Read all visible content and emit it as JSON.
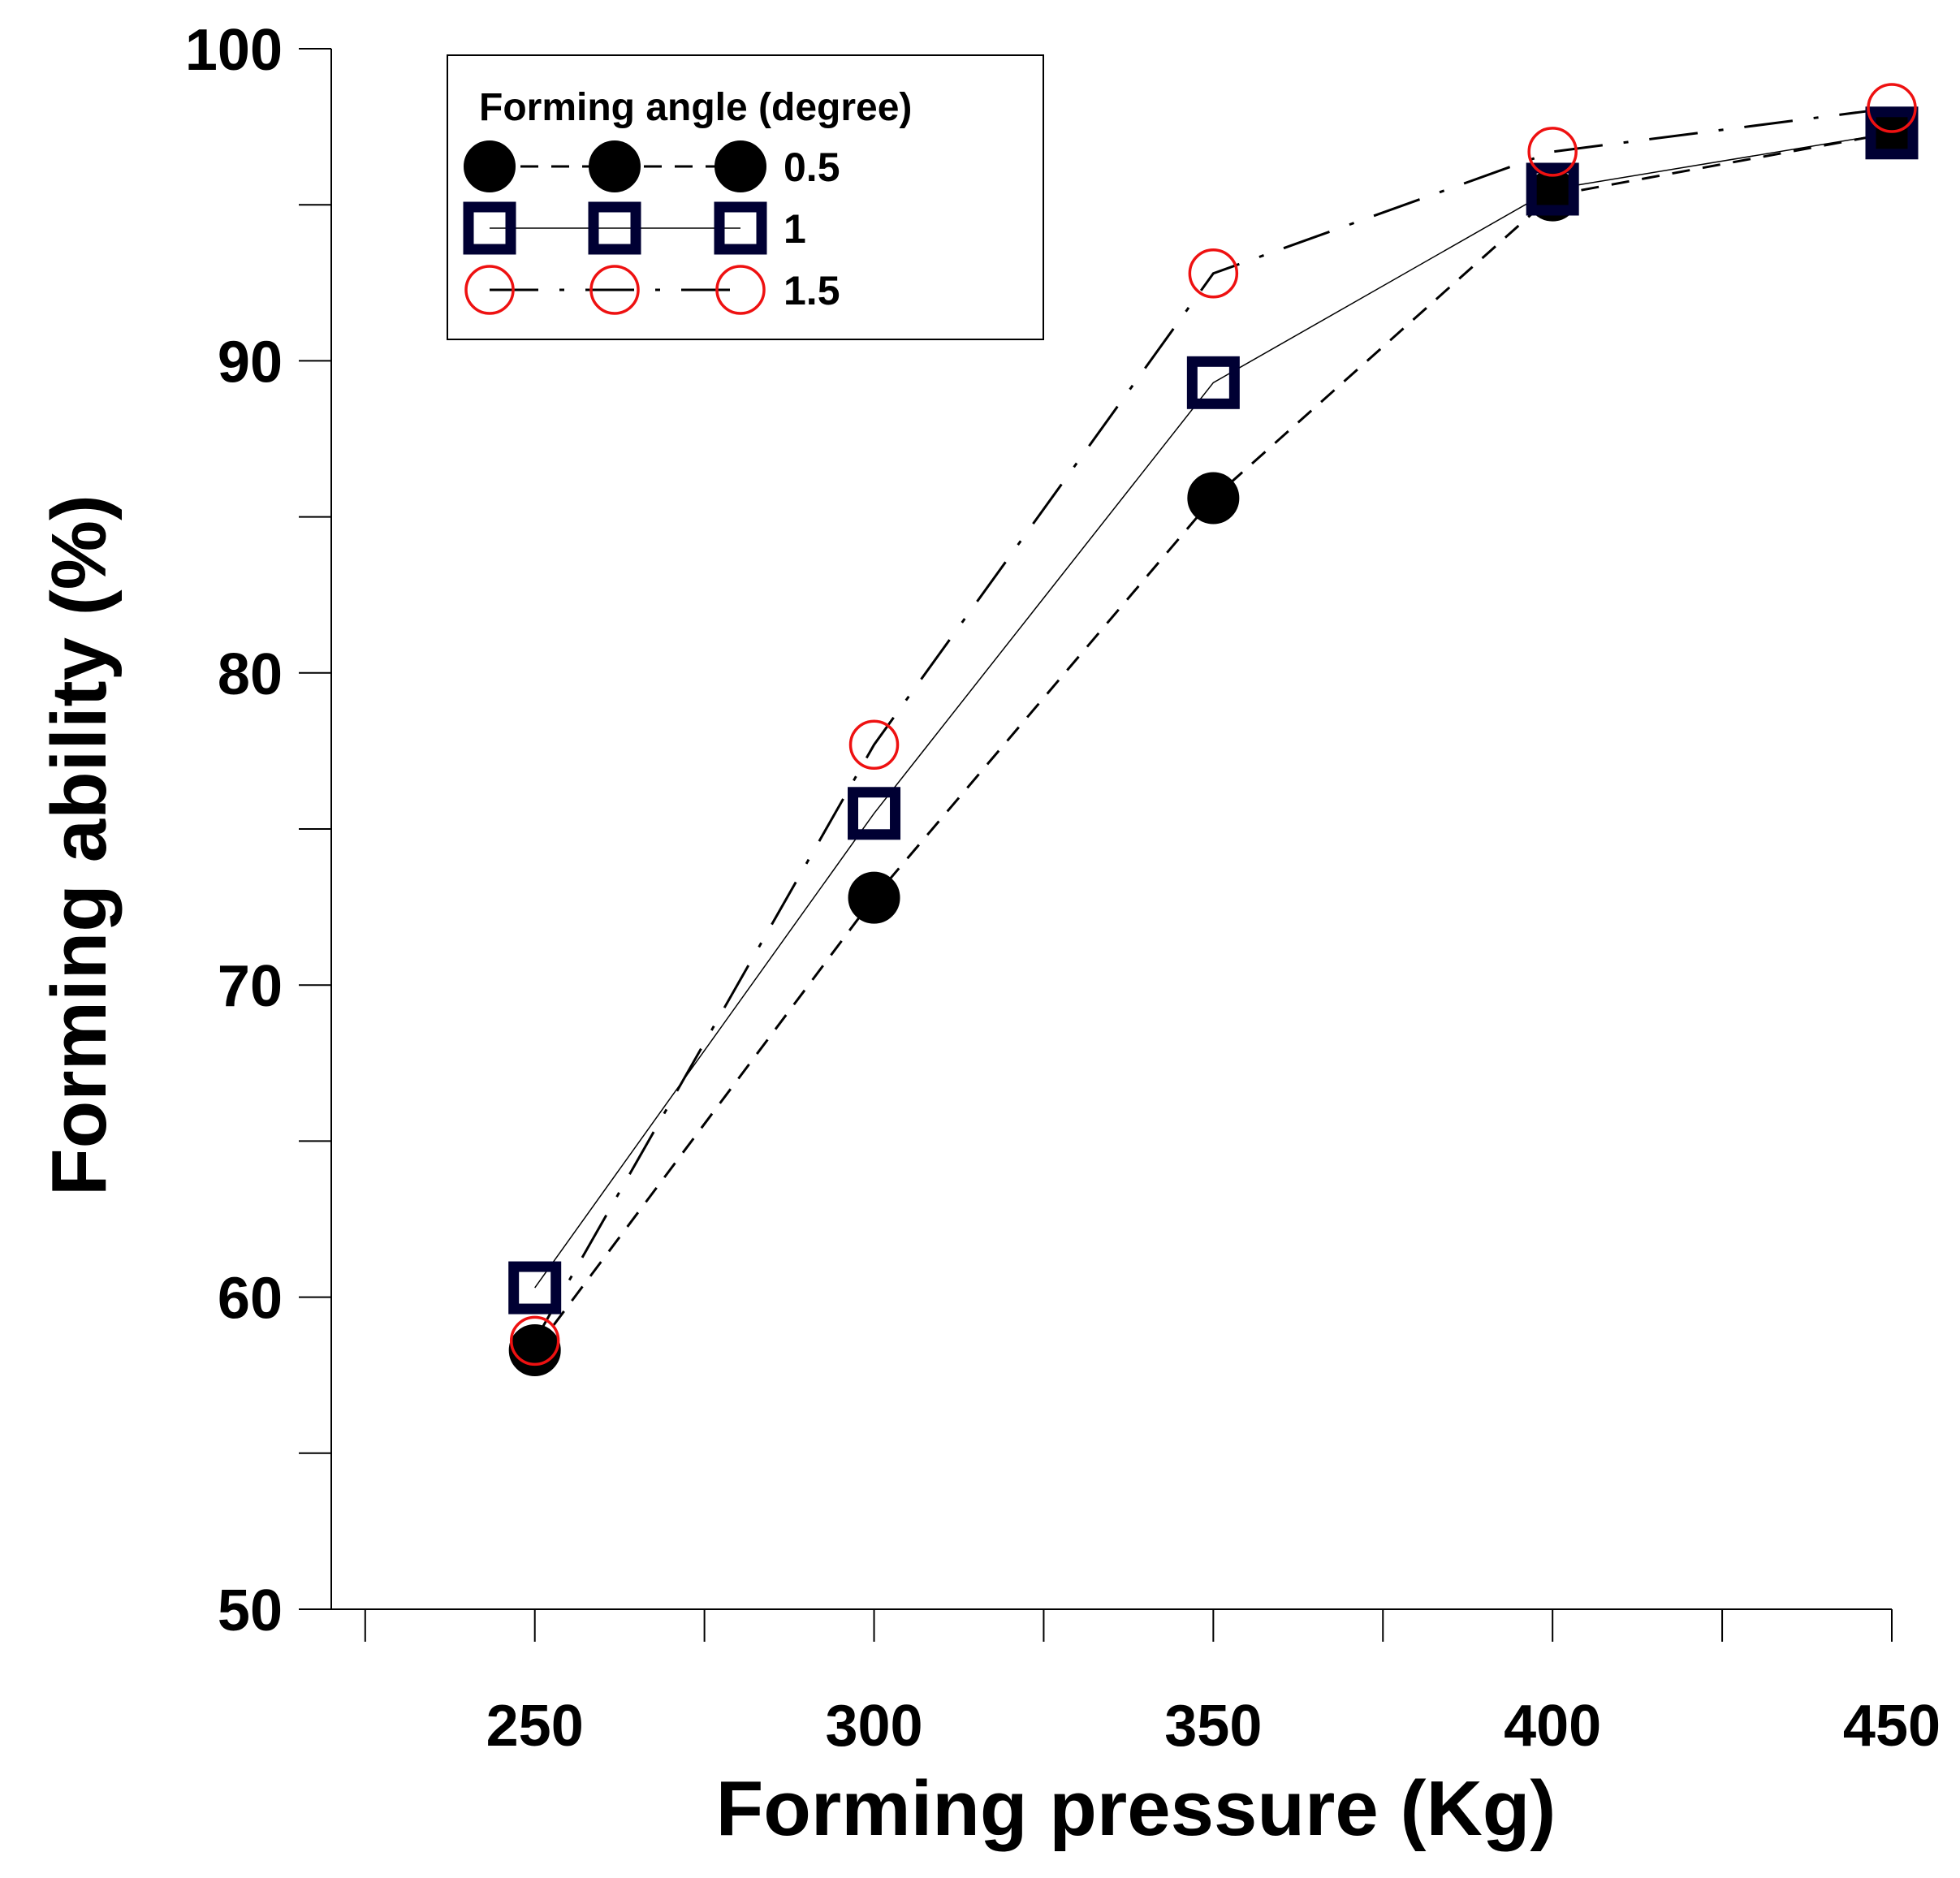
{
  "chart_data": {
    "type": "line",
    "title": "",
    "xlabel": "Forming pressure (Kg)",
    "ylabel": "Forming ability (%)",
    "x": [
      250,
      300,
      350,
      400,
      450
    ],
    "xlim": [
      220,
      450
    ],
    "ylim": [
      50,
      100
    ],
    "x_ticks": [
      250,
      300,
      350,
      400,
      450
    ],
    "x_tick_labels": [
      "250",
      "300",
      "350",
      "400",
      "450"
    ],
    "x_minor_ticks": [
      225,
      275,
      325,
      375,
      425
    ],
    "y_ticks": [
      50,
      60,
      70,
      80,
      90,
      100
    ],
    "y_tick_labels": [
      "50",
      "60",
      "70",
      "80",
      "90",
      "100"
    ],
    "y_minor_ticks": [
      55,
      65,
      75,
      85,
      95
    ],
    "grid": false,
    "legend": {
      "title": "Forming angle (degree)",
      "position": "top-left"
    },
    "series": [
      {
        "name": "0.5",
        "values": [
          58.3,
          72.8,
          85.6,
          95.3,
          97.3
        ],
        "marker": "filled-circle",
        "line_style": "dashed",
        "color": "#000000"
      },
      {
        "name": "1",
        "values": [
          60.3,
          75.5,
          89.3,
          95.5,
          97.3
        ],
        "marker": "open-square",
        "line_style": "solid",
        "color": "#000000",
        "marker_edge_color": "#000033"
      },
      {
        "name": "1.5",
        "values": [
          58.6,
          77.7,
          92.8,
          96.7,
          98.1
        ],
        "marker": "open-circle",
        "line_style": "dash-dot",
        "color": "#000000",
        "marker_edge_color": "#ee1111"
      }
    ]
  }
}
